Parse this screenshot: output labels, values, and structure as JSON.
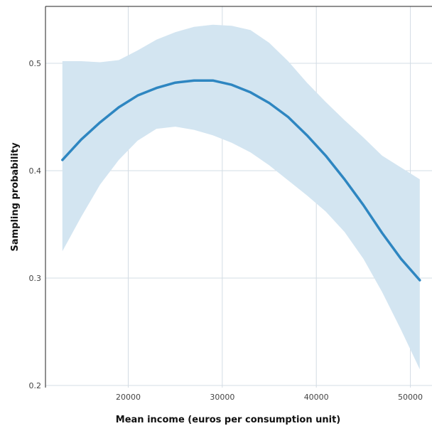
{
  "chart_data": {
    "type": "line",
    "title": "",
    "xlabel": "Mean income (euros per consumption unit)",
    "ylabel": "Sampling probability",
    "xlim": [
      11200,
      52300
    ],
    "ylim": [
      0.198,
      0.553
    ],
    "x_ticks": [
      20000,
      30000,
      40000,
      50000
    ],
    "x_tick_labels": [
      "20000",
      "30000",
      "40000",
      "50000"
    ],
    "y_ticks": [
      0.2,
      0.3,
      0.4,
      0.5
    ],
    "y_tick_labels": [
      "0.2",
      "0.3",
      "0.4",
      "0.5"
    ],
    "grid": true,
    "colors": {
      "line": "#2e86c1",
      "band": "#d3e5f1",
      "grid": "#d3dce4",
      "frame": "#222222"
    },
    "series": [
      {
        "x": [
          13000,
          15000,
          17000,
          19000,
          21000,
          23000,
          25000,
          27000,
          29000,
          31000,
          33000,
          35000,
          37000,
          39000,
          41000,
          43000,
          45000,
          47000,
          49000,
          51000
        ],
        "y": [
          0.41,
          0.429,
          0.445,
          0.459,
          0.47,
          0.477,
          0.482,
          0.484,
          0.484,
          0.48,
          0.473,
          0.463,
          0.45,
          0.433,
          0.414,
          0.392,
          0.368,
          0.342,
          0.318,
          0.298
        ],
        "lower": [
          0.325,
          0.357,
          0.387,
          0.41,
          0.428,
          0.439,
          0.441,
          0.438,
          0.433,
          0.426,
          0.417,
          0.405,
          0.391,
          0.377,
          0.362,
          0.343,
          0.318,
          0.287,
          0.252,
          0.215
        ],
        "upper": [
          0.502,
          0.502,
          0.501,
          0.503,
          0.512,
          0.522,
          0.529,
          0.534,
          0.536,
          0.535,
          0.531,
          0.519,
          0.502,
          0.482,
          0.464,
          0.447,
          0.431,
          0.414,
          0.403,
          0.392
        ]
      }
    ]
  }
}
